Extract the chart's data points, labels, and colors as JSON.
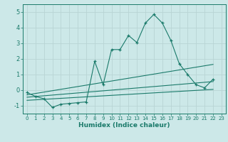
{
  "title": "",
  "xlabel": "Humidex (Indice chaleur)",
  "bg_color": "#cce8e8",
  "line_color": "#1a7a6a",
  "grid_color": "#b8d4d4",
  "xlim": [
    -0.5,
    23.5
  ],
  "ylim": [
    -1.5,
    5.5
  ],
  "xticks": [
    0,
    1,
    2,
    3,
    4,
    5,
    6,
    7,
    8,
    9,
    10,
    11,
    12,
    13,
    14,
    15,
    16,
    17,
    18,
    19,
    20,
    21,
    22,
    23
  ],
  "yticks": [
    -1,
    0,
    1,
    2,
    3,
    4,
    5
  ],
  "main_x": [
    0,
    1,
    2,
    3,
    4,
    5,
    6,
    7,
    8,
    9,
    10,
    11,
    12,
    13,
    14,
    15,
    16,
    17,
    18,
    19,
    20,
    21,
    22
  ],
  "main_y": [
    -0.15,
    -0.4,
    -0.55,
    -1.1,
    -0.9,
    -0.85,
    -0.8,
    -0.75,
    1.85,
    0.35,
    2.6,
    2.6,
    3.5,
    3.05,
    4.3,
    4.85,
    4.3,
    3.2,
    1.7,
    1.0,
    0.35,
    0.15,
    0.7
  ],
  "line2_x": [
    0,
    22
  ],
  "line2_y": [
    -0.3,
    1.65
  ],
  "line3_x": [
    0,
    22
  ],
  "line3_y": [
    -0.45,
    0.55
  ],
  "line4_x": [
    0,
    22
  ],
  "line4_y": [
    -0.65,
    0.05
  ]
}
